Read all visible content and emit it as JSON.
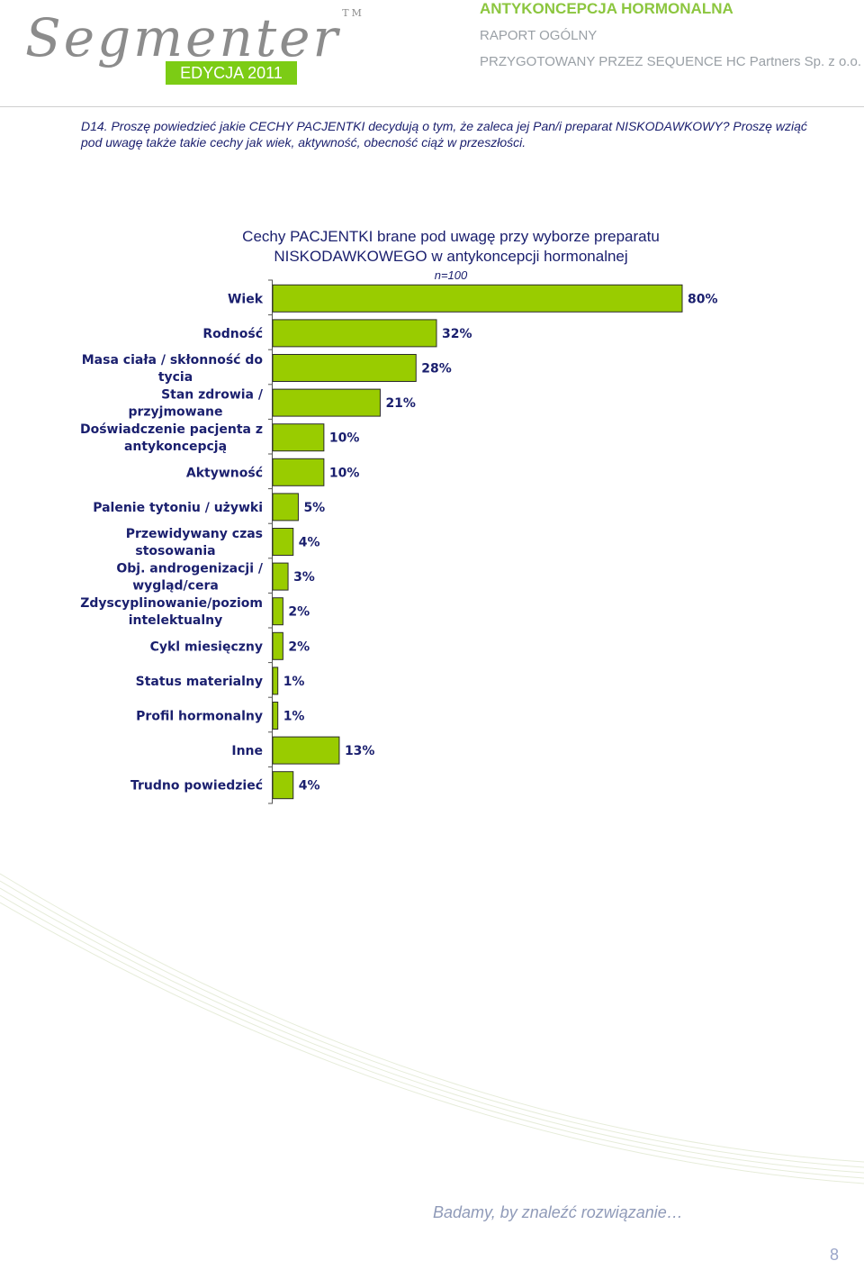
{
  "header": {
    "logo_text": "Segmenter",
    "trademark": "TM",
    "edition": "EDYCJA 2011",
    "report_title": "ANTYKONCEPCJA HORMONALNA",
    "report_type": "RAPORT OGÓLNY",
    "prepared_by": "PRZYGOTOWANY PRZEZ SEQUENCE HC Partners Sp. z o.o."
  },
  "question": "D14. Proszę powiedzieć jakie CECHY PACJENTKI decydują o tym, że zaleca jej Pan/i preparat NISKODAWKOWY? Proszę wziąć pod uwagę także takie cechy jak wiek, aktywność, obecność ciąż w przeszłości.",
  "chart_data": {
    "type": "bar",
    "orientation": "horizontal",
    "title_line1": "Cechy PACJENTKI brane pod uwagę przy wyborze preparatu",
    "title_line2": "NISKODAWKOWEGO w antykoncepcji hormonalnej",
    "subtitle": "n=100",
    "categories": [
      "Wiek",
      "Rodność",
      "Masa ciała / skłonność do tycia",
      "Stan zdrowia / przyjmowane",
      "Doświadczenie pacjenta z antykoncepcją",
      "Aktywność",
      "Palenie tytoniu / używki",
      "Przewidywany czas stosowania",
      "Obj. androgenizacji / wygląd/cera",
      "Zdyscyplinowanie/poziom intelektualny",
      "Cykl miesięczny",
      "Status materialny",
      "Profil hormonalny",
      "Inne",
      "Trudno powiedzieć"
    ],
    "category_lines": [
      [
        "Wiek"
      ],
      [
        "Rodność"
      ],
      [
        "Masa ciała / skłonność do",
        "tycia"
      ],
      [
        "Stan zdrowia /",
        "przyjmowane"
      ],
      [
        "Doświadczenie pacjenta z",
        "antykoncepcją"
      ],
      [
        "Aktywność"
      ],
      [
        "Palenie tytoniu / używki"
      ],
      [
        "Przewidywany czas",
        "stosowania"
      ],
      [
        "Obj. androgenizacji /",
        "wygląd/cera"
      ],
      [
        "Zdyscyplinowanie/poziom",
        "intelektualny"
      ],
      [
        "Cykl miesięczny"
      ],
      [
        "Status materialny"
      ],
      [
        "Profil hormonalny"
      ],
      [
        "Inne"
      ],
      [
        "Trudno powiedzieć"
      ]
    ],
    "values": [
      80,
      32,
      28,
      21,
      10,
      10,
      5,
      4,
      3,
      2,
      2,
      1,
      1,
      13,
      4
    ],
    "value_labels": [
      "80%",
      "32%",
      "28%",
      "21%",
      "10%",
      "10%",
      "5%",
      "4%",
      "3%",
      "2%",
      "2%",
      "1%",
      "1%",
      "13%",
      "4%"
    ],
    "unit": "%",
    "xlim": [
      0,
      80
    ],
    "grid": false,
    "bar_color": "#99cc00"
  },
  "footer": {
    "tagline": "Badamy, by znaleźć rozwiązanie…",
    "page_number": "8"
  }
}
